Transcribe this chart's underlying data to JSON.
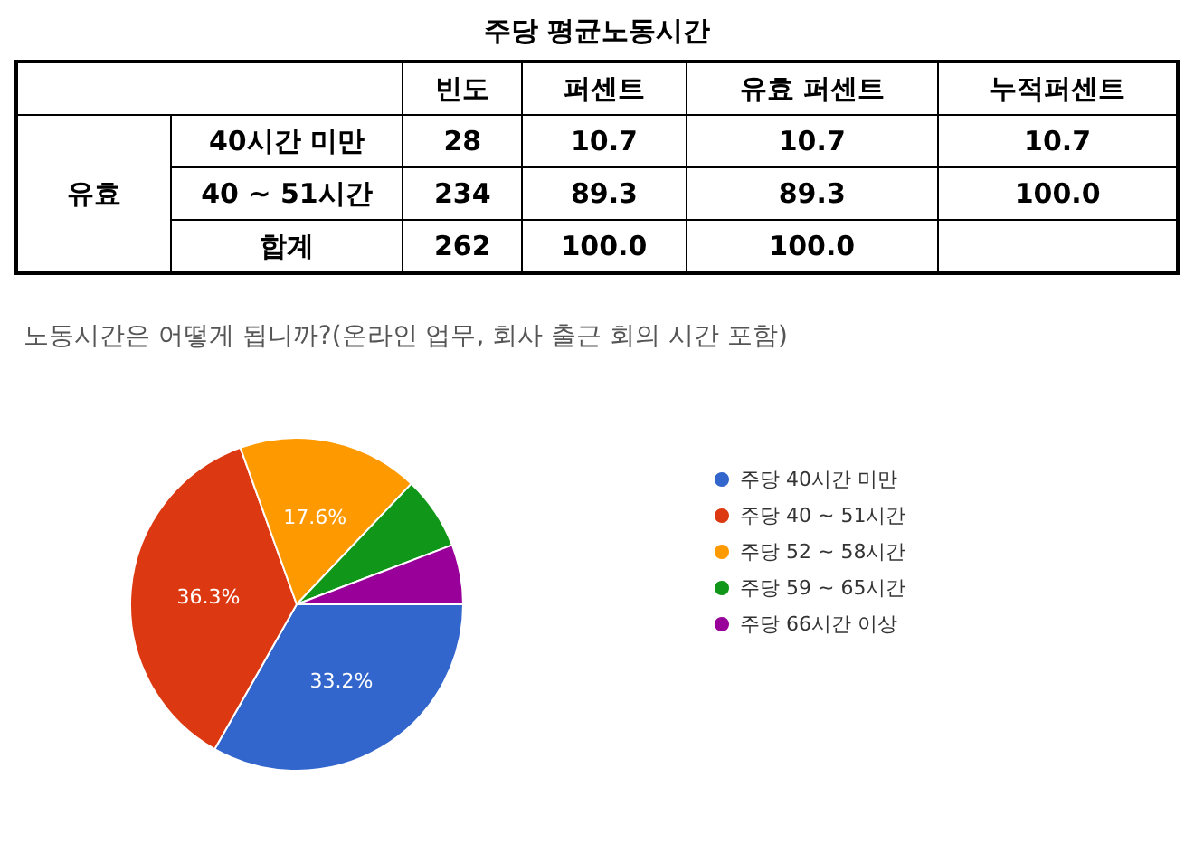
{
  "chart_data": [
    {
      "type": "other",
      "title": "주당 평균노동시간",
      "ylabel": "유효",
      "categories": [
        "빈도",
        "퍼센트",
        "유효 퍼센트",
        "누적퍼센트"
      ],
      "y_categories": [
        "40시간 미만",
        "40 ~ 51시간",
        "합계"
      ],
      "cell_labels": [
        [
          "28",
          "10.7",
          "10.7",
          "10.7"
        ],
        [
          "234",
          "89.3",
          "89.3",
          "100.0"
        ],
        [
          "262",
          "100.0",
          "100.0",
          null
        ]
      ]
    },
    {
      "type": "pie",
      "title": "노동시간은 어떻게 됩니까?(온라인 업무, 회사 출근 회의 시간 포함)",
      "categories": [
        "주당 40시간 미만",
        "주당 40 ~ 51시간",
        "주당 52 ~ 58시간",
        "주당 59 ~ 65시간",
        "주당 66시간 이상"
      ],
      "values": [
        33.2,
        36.3,
        17.6,
        7.1,
        5.8
      ],
      "colors": [
        "#3366cc",
        "#dc3912",
        "#ff9900",
        "#109618",
        "#990099"
      ],
      "value_labels": [
        "33.2%",
        "36.3%",
        "17.6%",
        null,
        null
      ],
      "legend": "right"
    }
  ]
}
